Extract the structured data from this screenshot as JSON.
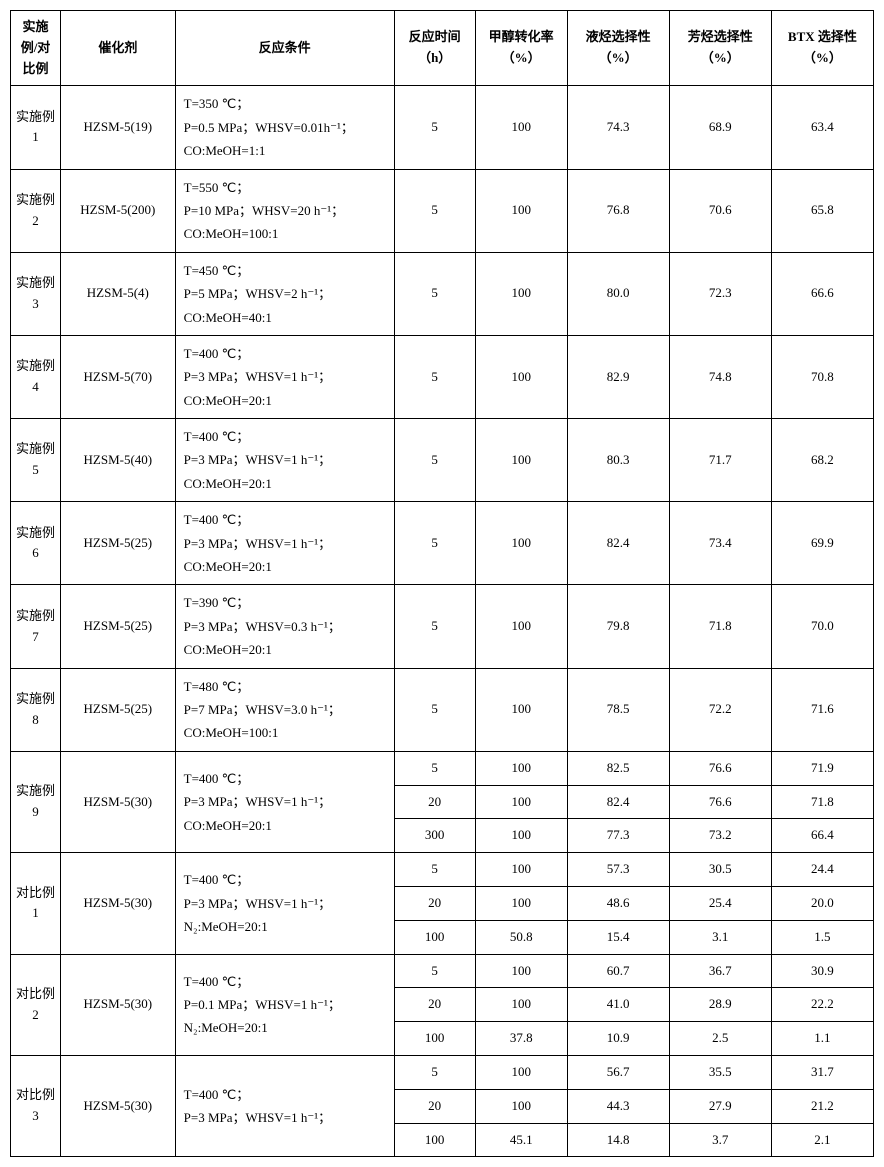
{
  "columns": [
    "实施例/对比例",
    "催化剂",
    "反应条件",
    "反应时间（h）",
    "甲醇转化率（%）",
    "液烃选择性（%）",
    "芳烃选择性（%）",
    "BTX 选择性（%）"
  ],
  "groups": [
    {
      "id": "实施例 1",
      "catalyst": "HZSM-5(19)",
      "cond": "T=350 ℃；\nP=0.5 MPa；WHSV=0.01h⁻¹；\nCO:MeOH=1:1",
      "rows": [
        [
          "5",
          "100",
          "74.3",
          "68.9",
          "63.4"
        ]
      ]
    },
    {
      "id": "实施例 2",
      "catalyst": "HZSM-5(200)",
      "cond": "T=550 ℃；\nP=10 MPa；WHSV=20 h⁻¹；\nCO:MeOH=100:1",
      "rows": [
        [
          "5",
          "100",
          "76.8",
          "70.6",
          "65.8"
        ]
      ]
    },
    {
      "id": "实施例 3",
      "catalyst": "HZSM-5(4)",
      "cond": "T=450 ℃；\nP=5 MPa；WHSV=2 h⁻¹；\nCO:MeOH=40:1",
      "rows": [
        [
          "5",
          "100",
          "80.0",
          "72.3",
          "66.6"
        ]
      ]
    },
    {
      "id": "实施例 4",
      "catalyst": "HZSM-5(70)",
      "cond": "T=400 ℃；\nP=3 MPa；WHSV=1 h⁻¹；\nCO:MeOH=20:1",
      "rows": [
        [
          "5",
          "100",
          "82.9",
          "74.8",
          "70.8"
        ]
      ]
    },
    {
      "id": "实施例 5",
      "catalyst": "HZSM-5(40)",
      "cond": "T=400 ℃；\nP=3 MPa；WHSV=1 h⁻¹；\nCO:MeOH=20:1",
      "rows": [
        [
          "5",
          "100",
          "80.3",
          "71.7",
          "68.2"
        ]
      ]
    },
    {
      "id": "实施例 6",
      "catalyst": "HZSM-5(25)",
      "cond": "T=400 ℃；\nP=3 MPa；WHSV=1 h⁻¹；\nCO:MeOH=20:1",
      "rows": [
        [
          "5",
          "100",
          "82.4",
          "73.4",
          "69.9"
        ]
      ]
    },
    {
      "id": "实施例 7",
      "catalyst": "HZSM-5(25)",
      "cond": "T=390 ℃；\nP=3 MPa；WHSV=0.3 h⁻¹；\nCO:MeOH=20:1",
      "rows": [
        [
          "5",
          "100",
          "79.8",
          "71.8",
          "70.0"
        ]
      ]
    },
    {
      "id": "实施例 8",
      "catalyst": "HZSM-5(25)",
      "cond": "T=480 ℃；\nP=7 MPa；WHSV=3.0 h⁻¹；\nCO:MeOH=100:1",
      "rows": [
        [
          "5",
          "100",
          "78.5",
          "72.2",
          "71.6"
        ]
      ]
    },
    {
      "id": "实施例 9",
      "catalyst": "HZSM-5(30)",
      "cond": "T=400 ℃；\nP=3 MPa；WHSV=1 h⁻¹；\nCO:MeOH=20:1",
      "rows": [
        [
          "5",
          "100",
          "82.5",
          "76.6",
          "71.9"
        ],
        [
          "20",
          "100",
          "82.4",
          "76.6",
          "71.8"
        ],
        [
          "300",
          "100",
          "77.3",
          "73.2",
          "66.4"
        ]
      ]
    },
    {
      "id": "对比例 1",
      "catalyst": "HZSM-5(30)",
      "cond": "T=400 ℃；\nP=3 MPa；WHSV=1 h⁻¹；\nN₂:MeOH=20:1",
      "rows": [
        [
          "5",
          "100",
          "57.3",
          "30.5",
          "24.4"
        ],
        [
          "20",
          "100",
          "48.6",
          "25.4",
          "20.0"
        ],
        [
          "100",
          "50.8",
          "15.4",
          "3.1",
          "1.5"
        ]
      ]
    },
    {
      "id": "对比例 2",
      "catalyst": "HZSM-5(30)",
      "cond": "T=400 ℃；\nP=0.1 MPa；WHSV=1 h⁻¹；\nN₂:MeOH=20:1",
      "rows": [
        [
          "5",
          "100",
          "60.7",
          "36.7",
          "30.9"
        ],
        [
          "20",
          "100",
          "41.0",
          "28.9",
          "22.2"
        ],
        [
          "100",
          "37.8",
          "10.9",
          "2.5",
          "1.1"
        ]
      ]
    },
    {
      "id": "对比例 3",
      "catalyst": "HZSM-5(30)",
      "cond": "T=400 ℃；\nP=3 MPa；WHSV=1 h⁻¹；",
      "rows": [
        [
          "5",
          "100",
          "56.7",
          "35.5",
          "31.7"
        ],
        [
          "20",
          "100",
          "44.3",
          "27.9",
          "21.2"
        ],
        [
          "100",
          "45.1",
          "14.8",
          "3.7",
          "2.1"
        ]
      ]
    }
  ]
}
